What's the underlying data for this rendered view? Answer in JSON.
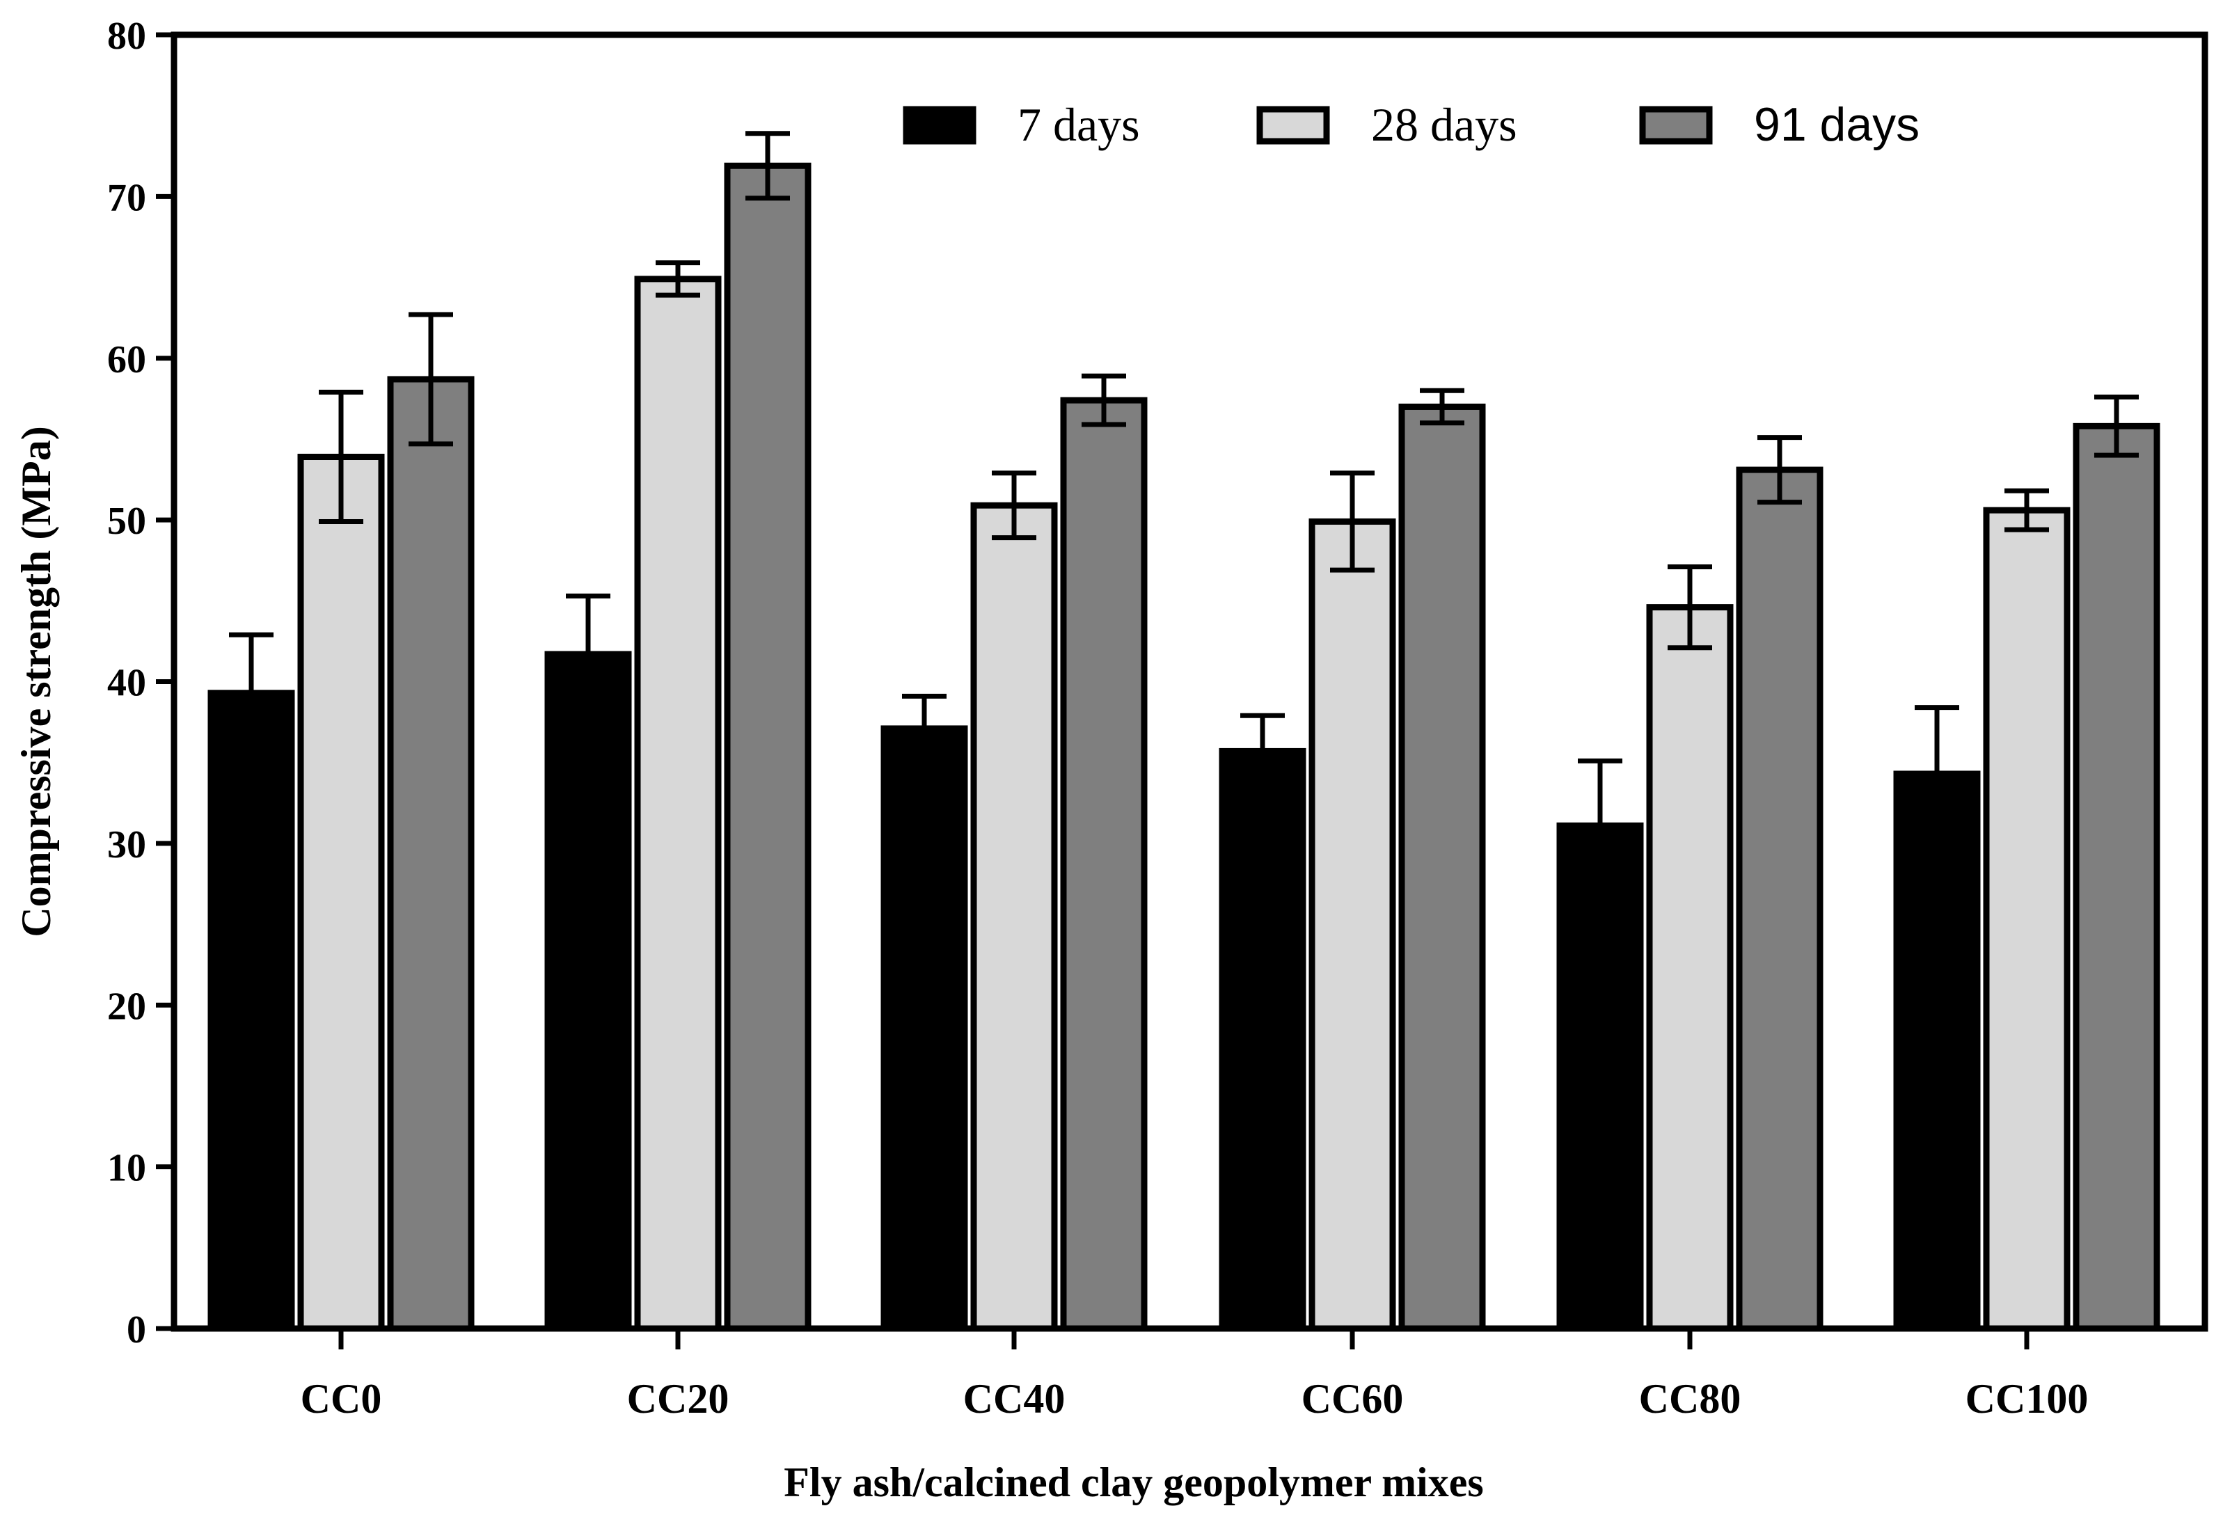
{
  "chart_data": {
    "type": "bar",
    "title": "",
    "xlabel": "Fly ash/calcined clay geopolymer mixes",
    "ylabel": "Compressive strength (MPa)",
    "ylim": [
      0,
      80
    ],
    "yticks": [
      0,
      10,
      20,
      30,
      40,
      50,
      60,
      70,
      80
    ],
    "categories": [
      "CC0",
      "CC20",
      "CC40",
      "CC60",
      "CC80",
      "CC100"
    ],
    "legend_position": "top-right",
    "series": [
      {
        "name": "7 days",
        "color": "#000000",
        "values": [
          39.3,
          41.7,
          37.1,
          35.7,
          31.1,
          34.3
        ],
        "errors": [
          3.6,
          3.6,
          2.0,
          2.2,
          4.0,
          4.1
        ]
      },
      {
        "name": "28 days",
        "color": "#d8d8d8",
        "values": [
          53.9,
          64.9,
          50.9,
          49.9,
          44.6,
          50.6
        ],
        "errors": [
          4.0,
          1.0,
          2.0,
          3.0,
          2.5,
          1.2
        ]
      },
      {
        "name": "91 days",
        "color": "#7f7f7f",
        "values": [
          58.7,
          71.9,
          57.4,
          57.0,
          53.1,
          55.8
        ],
        "errors": [
          4.0,
          2.0,
          1.5,
          1.0,
          2.0,
          1.8
        ]
      }
    ]
  }
}
